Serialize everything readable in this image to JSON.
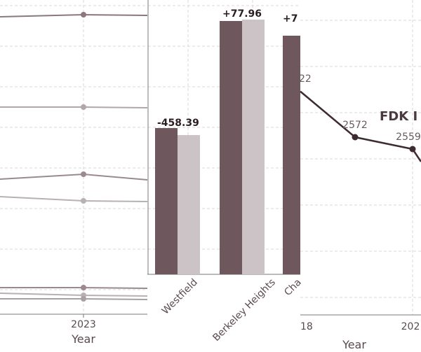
{
  "chart_data": [
    {
      "type": "line",
      "xlabel": "Year",
      "x_ticks": [
        "2023"
      ],
      "grid": true,
      "series": [
        {
          "color": "#8a787e",
          "values": [
            {
              "x": 2023,
              "y": 1
            }
          ]
        },
        {
          "color": "#b3a6ab",
          "values": [
            {
              "x": 2023,
              "y": 1
            }
          ]
        },
        {
          "color": "#9a8a90",
          "values": [
            {
              "x": 2023,
              "y": 1
            }
          ]
        },
        {
          "color": "#b8b0b3",
          "values": [
            {
              "x": 2023,
              "y": 1
            }
          ]
        },
        {
          "color": "#9a8a90",
          "values": [
            {
              "x": 2023,
              "y": 1
            }
          ]
        },
        {
          "color": "#b8b0b3",
          "values": [
            {
              "x": 2023,
              "y": 1
            }
          ]
        },
        {
          "color": "#a8a0a3",
          "values": [
            {
              "x": 2023,
              "y": 1
            }
          ]
        }
      ]
    },
    {
      "type": "bar",
      "categories": [
        "Westfield",
        "Berkeley Heights",
        "Cha"
      ],
      "series": [
        {
          "color": "#6e575d",
          "values": [
            null,
            null,
            null
          ]
        },
        {
          "color": "#cbc3c5",
          "values": [
            null,
            null,
            null
          ]
        }
      ],
      "data_labels": [
        "-458.39",
        "+77.96",
        "+7"
      ],
      "grid": true
    },
    {
      "type": "line",
      "title": "FDK I",
      "xlabel": "Year",
      "x_ticks": [
        "18",
        "202"
      ],
      "grid": true,
      "series": [
        {
          "color": "#3e2a32",
          "values": [
            {
              "x": "",
              "y": 2622,
              "label": "22"
            },
            {
              "x": "",
              "y": 2572,
              "label": "2572"
            },
            {
              "x": "",
              "y": 2559,
              "label": "2559"
            }
          ]
        }
      ]
    }
  ]
}
